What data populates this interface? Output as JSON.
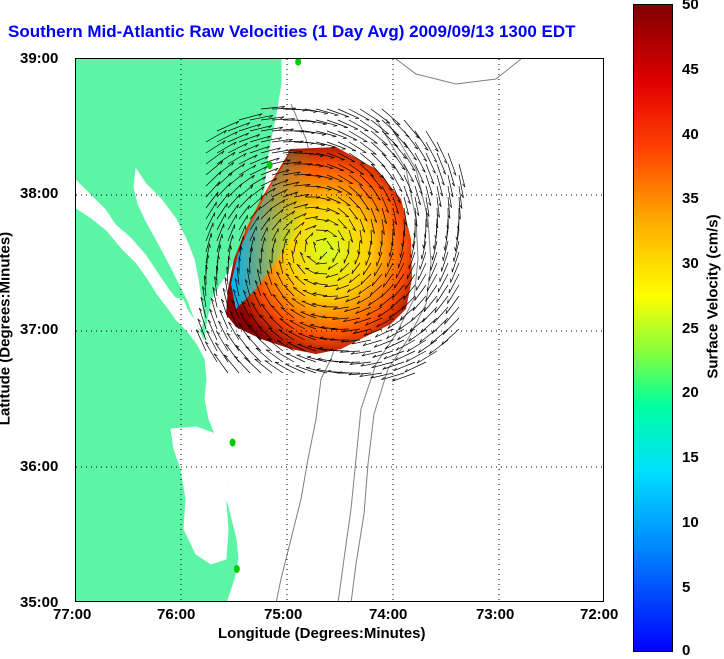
{
  "title": "Southern Mid-Atlantic Raw Velocities (1 Day Avg) 2009/09/13 1300 EDT",
  "x_ticks": [
    "77:00",
    "76:00",
    "75:00",
    "74:00",
    "73:00",
    "72:00"
  ],
  "y_ticks": [
    "39:00",
    "38:00",
    "37:00",
    "36:00",
    "35:00"
  ],
  "xlabel": "Longitude (Degrees:Minutes)",
  "ylabel": "Latitude (Degrees:Minutes)",
  "colorbar": {
    "label": "Surface Velocity (cm/s)",
    "ticks": [
      "50",
      "45",
      "40",
      "35",
      "30",
      "25",
      "20",
      "15",
      "10",
      "5",
      "0"
    ],
    "min": 0,
    "max": 50
  },
  "colors": {
    "land": "#5cf5a5",
    "water": "#ffffff",
    "title": "#0000ff",
    "grid": "#000000",
    "bathymetry": "#808080",
    "station": "#00cc00"
  },
  "map": {
    "lon_range": [
      -77,
      -72
    ],
    "lat_range": [
      35,
      39
    ],
    "stations": [
      {
        "lon": -74.9,
        "lat": 38.98
      },
      {
        "lon": -75.17,
        "lat": 38.22
      },
      {
        "lon": -75.52,
        "lat": 36.18
      },
      {
        "lon": -75.48,
        "lat": 35.25
      }
    ]
  }
}
